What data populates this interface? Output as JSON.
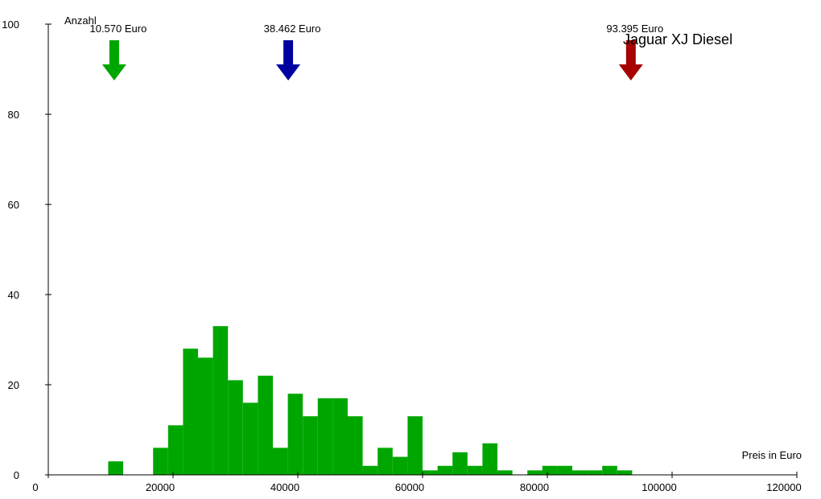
{
  "chart_data": {
    "type": "bar",
    "title": "Jaguar XJ Diesel",
    "xlabel": "Preis in Euro",
    "ylabel": "Anzahl",
    "xlim": [
      0,
      120000
    ],
    "ylim": [
      0,
      100
    ],
    "x_ticks": [
      0,
      20000,
      40000,
      60000,
      80000,
      100000,
      120000
    ],
    "y_ticks": [
      0,
      20,
      40,
      60,
      80,
      100
    ],
    "x_tick_labels": [
      "0",
      "20000",
      "40000",
      "60000",
      "80000",
      "100000",
      "120000"
    ],
    "y_tick_labels": [
      "0",
      "20",
      "40",
      "60",
      "80",
      "100"
    ],
    "grid": false,
    "bar_color": "#00a600",
    "bins": [
      {
        "x0": 9600,
        "x1": 12000,
        "count": 3
      },
      {
        "x0": 16800,
        "x1": 19200,
        "count": 6
      },
      {
        "x0": 19200,
        "x1": 21600,
        "count": 11
      },
      {
        "x0": 21600,
        "x1": 24000,
        "count": 28
      },
      {
        "x0": 24000,
        "x1": 26400,
        "count": 26
      },
      {
        "x0": 26400,
        "x1": 28800,
        "count": 33
      },
      {
        "x0": 28800,
        "x1": 31200,
        "count": 21
      },
      {
        "x0": 31200,
        "x1": 33600,
        "count": 16
      },
      {
        "x0": 33600,
        "x1": 36000,
        "count": 22
      },
      {
        "x0": 36000,
        "x1": 38400,
        "count": 6
      },
      {
        "x0": 38400,
        "x1": 40800,
        "count": 18
      },
      {
        "x0": 40800,
        "x1": 43200,
        "count": 13
      },
      {
        "x0": 43200,
        "x1": 45600,
        "count": 17
      },
      {
        "x0": 45600,
        "x1": 48000,
        "count": 17
      },
      {
        "x0": 48000,
        "x1": 50400,
        "count": 13
      },
      {
        "x0": 50400,
        "x1": 52800,
        "count": 2
      },
      {
        "x0": 52800,
        "x1": 55200,
        "count": 6
      },
      {
        "x0": 55200,
        "x1": 57600,
        "count": 4
      },
      {
        "x0": 57600,
        "x1": 60000,
        "count": 13
      },
      {
        "x0": 60000,
        "x1": 62400,
        "count": 1
      },
      {
        "x0": 62400,
        "x1": 64800,
        "count": 2
      },
      {
        "x0": 64800,
        "x1": 67200,
        "count": 5
      },
      {
        "x0": 67200,
        "x1": 69600,
        "count": 2
      },
      {
        "x0": 69600,
        "x1": 72000,
        "count": 7
      },
      {
        "x0": 72000,
        "x1": 74400,
        "count": 1
      },
      {
        "x0": 76800,
        "x1": 79200,
        "count": 1
      },
      {
        "x0": 79200,
        "x1": 81600,
        "count": 2
      },
      {
        "x0": 81600,
        "x1": 84000,
        "count": 2
      },
      {
        "x0": 84000,
        "x1": 86400,
        "count": 1
      },
      {
        "x0": 86400,
        "x1": 88800,
        "count": 1
      },
      {
        "x0": 88800,
        "x1": 91200,
        "count": 2
      },
      {
        "x0": 91200,
        "x1": 93600,
        "count": 1
      }
    ],
    "markers": [
      {
        "name": "min",
        "label": "10.570 Euro",
        "value": 10570,
        "color": "#00a600"
      },
      {
        "name": "avg",
        "label": "38.462 Euro",
        "value": 38462,
        "color": "#0000a0"
      },
      {
        "name": "max",
        "label": "93.395 Euro",
        "value": 93395,
        "color": "#a60000"
      }
    ]
  }
}
